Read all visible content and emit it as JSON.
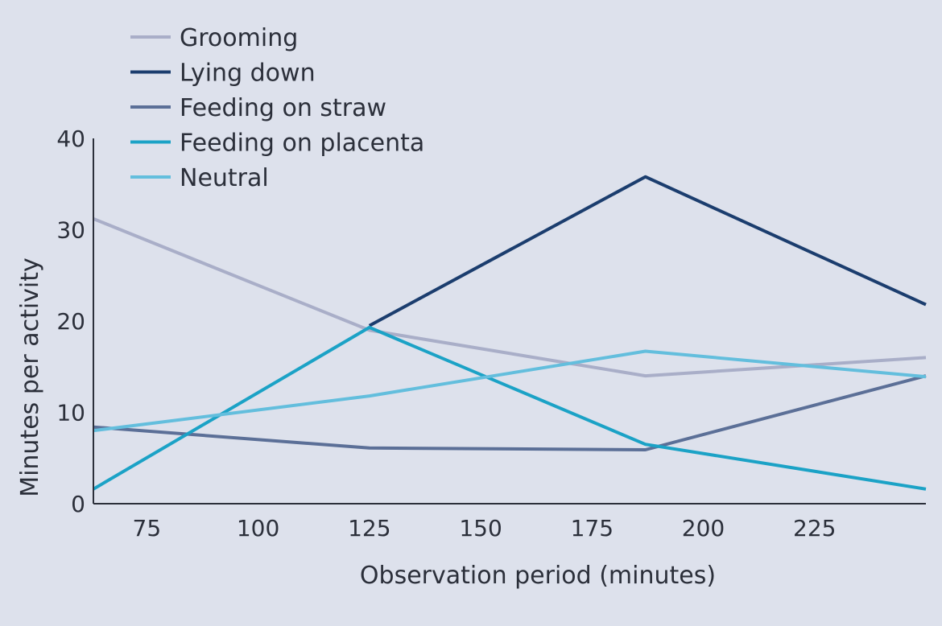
{
  "chart_data": {
    "type": "line",
    "title": "",
    "xlabel": "Observation period (minutes)",
    "ylabel": "Minutes per activity",
    "xlim": [
      63,
      250
    ],
    "ylim": [
      0,
      40
    ],
    "xticks": [
      75,
      100,
      125,
      150,
      175,
      200,
      225
    ],
    "yticks": [
      0,
      10,
      20,
      30,
      40
    ],
    "grid": false,
    "legend_position": "top-left",
    "series": [
      {
        "name": "Grooming",
        "color": "#a9aec8",
        "points": [
          [
            63,
            31.2
          ],
          [
            125,
            19.0
          ],
          [
            187,
            14.0
          ],
          [
            250,
            16.0
          ]
        ]
      },
      {
        "name": "Lying down",
        "color": "#1b3d6e",
        "points": [
          [
            125,
            19.5
          ],
          [
            187,
            35.8
          ],
          [
            250,
            21.8
          ]
        ]
      },
      {
        "name": "Feeding on straw",
        "color": "#5b6f97",
        "points": [
          [
            63,
            8.4
          ],
          [
            125,
            6.1
          ],
          [
            187,
            5.9
          ],
          [
            250,
            14.0
          ]
        ]
      },
      {
        "name": "Feeding on placenta",
        "color": "#1ba2c6",
        "points": [
          [
            63,
            1.6
          ],
          [
            125,
            19.3
          ],
          [
            187,
            6.5
          ],
          [
            250,
            1.6
          ]
        ]
      },
      {
        "name": "Neutral",
        "color": "#63bedd",
        "points": [
          [
            63,
            8.0
          ],
          [
            125,
            11.8
          ],
          [
            187,
            16.7
          ],
          [
            250,
            13.9
          ]
        ]
      }
    ]
  }
}
